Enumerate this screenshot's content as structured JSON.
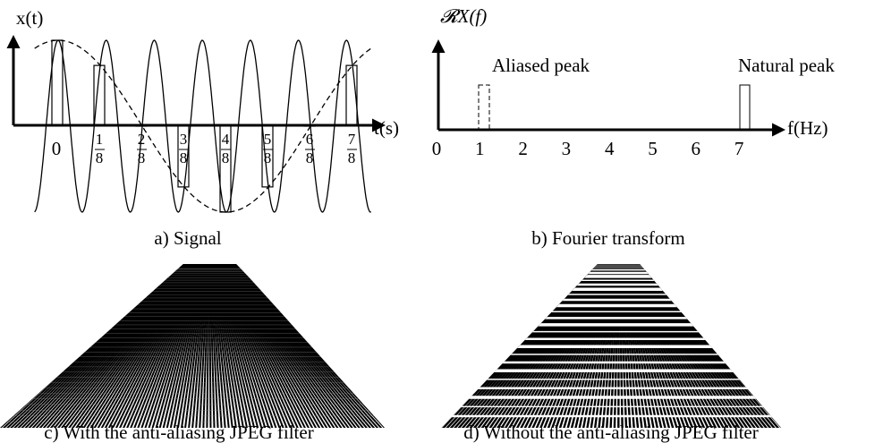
{
  "panels": [
    {
      "caption": "a) Signal",
      "y_label": "x(t)",
      "x_label": "t(s)",
      "ticks": [
        "0",
        {
          "num": "1",
          "den": "8"
        },
        {
          "num": "2",
          "den": "8"
        },
        {
          "num": "3",
          "den": "8"
        },
        {
          "num": "4",
          "den": "8"
        },
        {
          "num": "5",
          "den": "8"
        },
        {
          "num": "6",
          "den": "8"
        },
        {
          "num": "7",
          "den": "8"
        }
      ]
    },
    {
      "caption": "b) Fourier transform",
      "y_label": "𝓡X(f)",
      "x_label": "f(Hz)",
      "ticks": [
        "0",
        "1",
        "2",
        "3",
        "4",
        "5",
        "6",
        "7"
      ],
      "annotations": [
        "Aliased peak",
        "Natural peak"
      ]
    },
    {
      "caption": "c) With the anti-aliasing JPEG filter"
    },
    {
      "caption": "d) Without the anti-aliasing JPEG filter"
    }
  ]
}
